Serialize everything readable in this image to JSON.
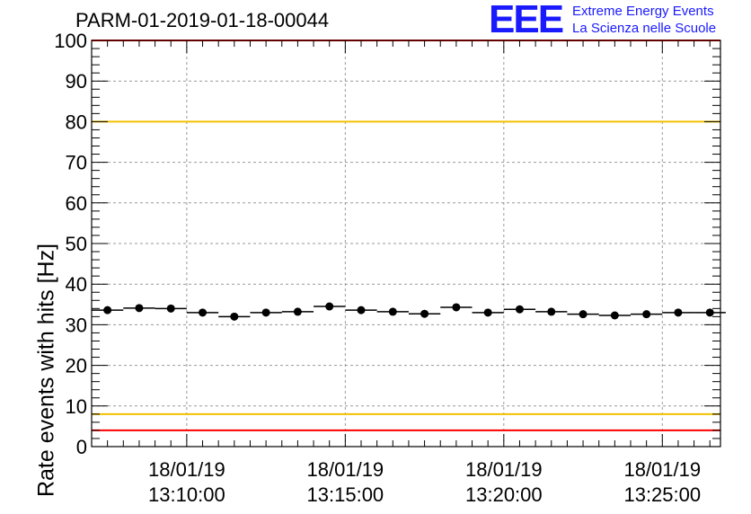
{
  "header": {
    "title": "PARM-01-2019-01-18-00044",
    "logo_text": "EEE",
    "logo_line1": "Extreme Energy Events",
    "logo_line2": "La Scienza nelle Scuole",
    "logo_color": "#1a1aff"
  },
  "chart_data": {
    "type": "scatter",
    "title": "PARM-01-2019-01-18-00044",
    "xlabel": "",
    "ylabel": "Rate events with hits [Hz]",
    "ylim": [
      0,
      100
    ],
    "yticks": [
      0,
      10,
      20,
      30,
      40,
      50,
      60,
      70,
      80,
      90,
      100
    ],
    "xlim": [
      "13:07:00",
      "13:26:50"
    ],
    "xticks": [
      {
        "value": "13:10:00",
        "label_date": "18/01/19",
        "label_time": "13:10:00"
      },
      {
        "value": "13:15:00",
        "label_date": "18/01/19",
        "label_time": "13:15:00"
      },
      {
        "value": "13:20:00",
        "label_date": "18/01/19",
        "label_time": "13:20:00"
      },
      {
        "value": "13:25:00",
        "label_date": "18/01/19",
        "label_time": "13:25:00"
      }
    ],
    "grid": true,
    "bin_width_seconds": 60,
    "series": [
      {
        "x": [
          "13:07:30",
          "13:08:30",
          "13:09:30",
          "13:10:30",
          "13:11:30",
          "13:12:30",
          "13:13:30",
          "13:14:30",
          "13:15:30",
          "13:16:30",
          "13:17:30",
          "13:18:30",
          "13:19:30",
          "13:20:30",
          "13:21:30",
          "13:22:30",
          "13:23:30",
          "13:24:30",
          "13:25:30",
          "13:26:30"
        ],
        "values": [
          33.6,
          34.1,
          34.0,
          33.0,
          32.0,
          33.0,
          33.2,
          34.5,
          33.6,
          33.2,
          32.7,
          34.3,
          33.0,
          33.8,
          33.2,
          32.6,
          32.3,
          32.6,
          33.0,
          33.0
        ]
      }
    ],
    "reference_lines": [
      {
        "y": 80,
        "color": "#f0c000"
      },
      {
        "y": 8,
        "color": "#f0c000"
      },
      {
        "y": 100,
        "color": "#ff0000"
      },
      {
        "y": 4,
        "color": "#ff0000"
      }
    ]
  }
}
